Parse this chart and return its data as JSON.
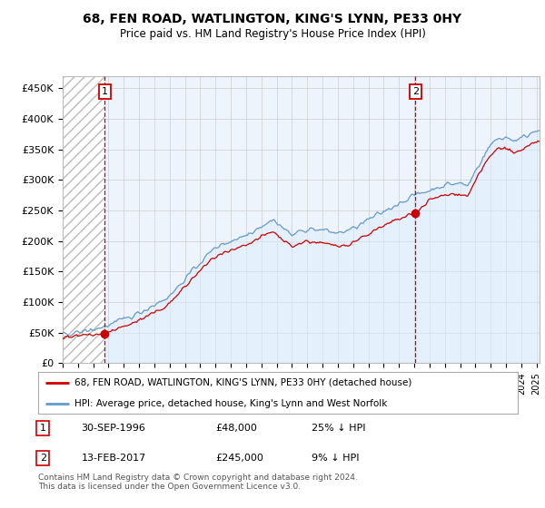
{
  "title": "68, FEN ROAD, WATLINGTON, KING'S LYNN, PE33 0HY",
  "subtitle": "Price paid vs. HM Land Registry's House Price Index (HPI)",
  "ylabel_ticks": [
    "£0",
    "£50K",
    "£100K",
    "£150K",
    "£200K",
    "£250K",
    "£300K",
    "£350K",
    "£400K",
    "£450K"
  ],
  "ytick_values": [
    0,
    50000,
    100000,
    150000,
    200000,
    250000,
    300000,
    350000,
    400000,
    450000
  ],
  "ylim": [
    0,
    470000
  ],
  "xlim_start": 1994.0,
  "xlim_end": 2025.2,
  "purchase1_year": 1996.75,
  "purchase1_price": 48000,
  "purchase2_year": 2017.08,
  "purchase2_price": 245000,
  "vline_color": "#cc0000",
  "red_line_color": "#cc0000",
  "blue_line_color": "#6699cc",
  "blue_fill_color": "#ddeeff",
  "legend_label1": "68, FEN ROAD, WATLINGTON, KING'S LYNN, PE33 0HY (detached house)",
  "legend_label2": "HPI: Average price, detached house, King's Lynn and West Norfolk",
  "footer": "Contains HM Land Registry data © Crown copyright and database right 2024.\nThis data is licensed under the Open Government Licence v3.0.",
  "background_color": "#ffffff",
  "plot_bg_color": "#eef4fb"
}
